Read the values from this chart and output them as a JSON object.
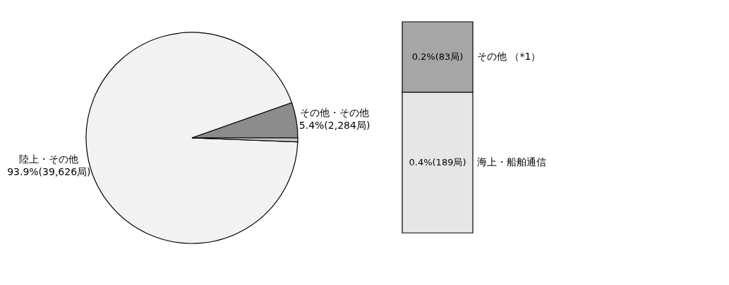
{
  "chart_data": [
    {
      "type": "pie",
      "categories": [
        "陸上・その他",
        "その他・その他",
        null
      ],
      "values": [
        93.9,
        5.4,
        0.6
      ],
      "colors": [
        "#f2f2f2",
        "#8c8c8c",
        "#c8c8c8"
      ],
      "value_labels": [
        "93.9%(39,626局)",
        "5.4%(2,284局)",
        null
      ]
    },
    {
      "type": "bar",
      "stacked": true,
      "categories": [
        null
      ],
      "tick_labels": false,
      "series": [
        {
          "name": "海上・船舶通信",
          "color": "#e6e6e6",
          "values": [
            0.4
          ],
          "value_labels": [
            "0.4%(189局)"
          ]
        },
        {
          "name": "その他 （*1）",
          "color": "#a6a6a6",
          "values": [
            0.2
          ],
          "value_labels": [
            "0.2%(83局)"
          ]
        }
      ]
    }
  ]
}
